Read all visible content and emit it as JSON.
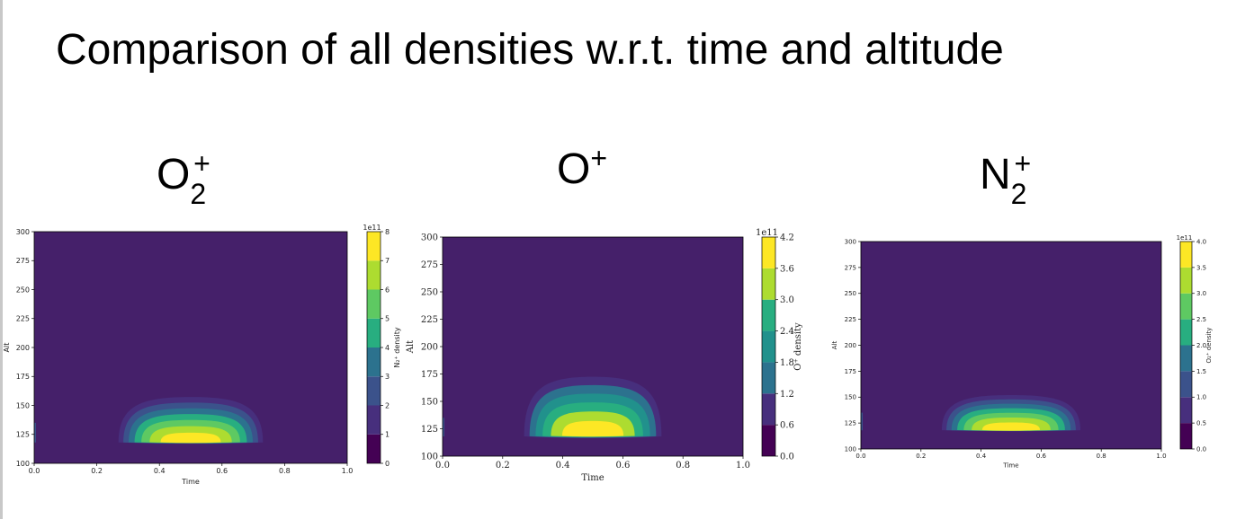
{
  "slide_title": "Comparison of all densities w.r.t. time and altitude",
  "labels": [
    {
      "base": "O",
      "sub": "2",
      "sup": "+"
    },
    {
      "base": "O",
      "sub": "",
      "sup": "+"
    },
    {
      "base": "N",
      "sub": "2",
      "sup": "+"
    }
  ],
  "colors": {
    "viridis": [
      "#440154",
      "#472f7d",
      "#3b528b",
      "#2c728e",
      "#21918c",
      "#28ae80",
      "#5ec962",
      "#addc30",
      "#fde725"
    ],
    "background": "#45206a"
  },
  "chart_data": [
    {
      "type": "contourf",
      "xlabel": "Time",
      "ylabel": "Alt",
      "xlim": [
        0.0,
        1.0
      ],
      "ylim": [
        100,
        300
      ],
      "xticks": [
        "0.0",
        "0.2",
        "0.4",
        "0.6",
        "0.8",
        "1.0"
      ],
      "yticks": [
        "100",
        "125",
        "150",
        "175",
        "200",
        "225",
        "250",
        "275",
        "300"
      ],
      "colorbar": {
        "label": "N2+ density",
        "label_display": "N₂⁺ density",
        "offset": "1e11",
        "ticks": [
          "0",
          "1",
          "2",
          "3",
          "4",
          "5",
          "6",
          "7",
          "8"
        ],
        "levels": [
          0,
          1,
          2,
          3,
          4,
          5,
          6,
          7,
          8
        ]
      },
      "blob": {
        "time_start": 0.26,
        "time_end": 0.75,
        "time_peak": 0.5,
        "alt_base": 118,
        "alt_top": 162,
        "peak_alt": 120,
        "peak_value": 8.0
      }
    },
    {
      "type": "contourf",
      "xlabel": "Time",
      "ylabel": "Alt",
      "xlim": [
        0.0,
        1.0
      ],
      "ylim": [
        100,
        300
      ],
      "xticks": [
        "0.0",
        "0.2",
        "0.4",
        "0.6",
        "0.8",
        "1.0"
      ],
      "yticks": [
        "100",
        "125",
        "150",
        "175",
        "200",
        "225",
        "250",
        "275",
        "300"
      ],
      "colorbar": {
        "label": "O+ density",
        "label_display": "O⁺ density",
        "offset": "1e11",
        "ticks": [
          "0.0",
          "0.6",
          "1.2",
          "1.8",
          "2.4",
          "3.0",
          "3.6",
          "4.2"
        ],
        "levels": [
          0.0,
          0.6,
          1.2,
          1.8,
          2.4,
          3.0,
          3.6,
          4.2
        ]
      },
      "blob": {
        "time_start": 0.26,
        "time_end": 0.75,
        "time_peak": 0.5,
        "alt_base": 118,
        "alt_top": 180,
        "peak_alt": 122,
        "peak_value": 4.2
      }
    },
    {
      "type": "contourf",
      "xlabel": "Time",
      "ylabel": "Alt",
      "xlim": [
        0.0,
        1.0
      ],
      "ylim": [
        100,
        300
      ],
      "xticks": [
        "0.0",
        "0.2",
        "0.4",
        "0.6",
        "0.8",
        "1.0"
      ],
      "yticks": [
        "100",
        "125",
        "150",
        "175",
        "200",
        "225",
        "250",
        "275",
        "300"
      ],
      "colorbar": {
        "label": "O2+ density",
        "label_display": "O₂⁺ density",
        "offset": "1e11",
        "ticks": [
          "0.0",
          "0.5",
          "1.0",
          "1.5",
          "2.0",
          "2.5",
          "3.0",
          "3.5",
          "4.0"
        ],
        "levels": [
          0.0,
          0.5,
          1.0,
          1.5,
          2.0,
          2.5,
          3.0,
          3.5,
          4.0
        ]
      },
      "blob": {
        "time_start": 0.26,
        "time_end": 0.75,
        "time_peak": 0.5,
        "alt_base": 118,
        "alt_top": 156,
        "peak_alt": 120,
        "peak_value": 4.0
      }
    }
  ]
}
